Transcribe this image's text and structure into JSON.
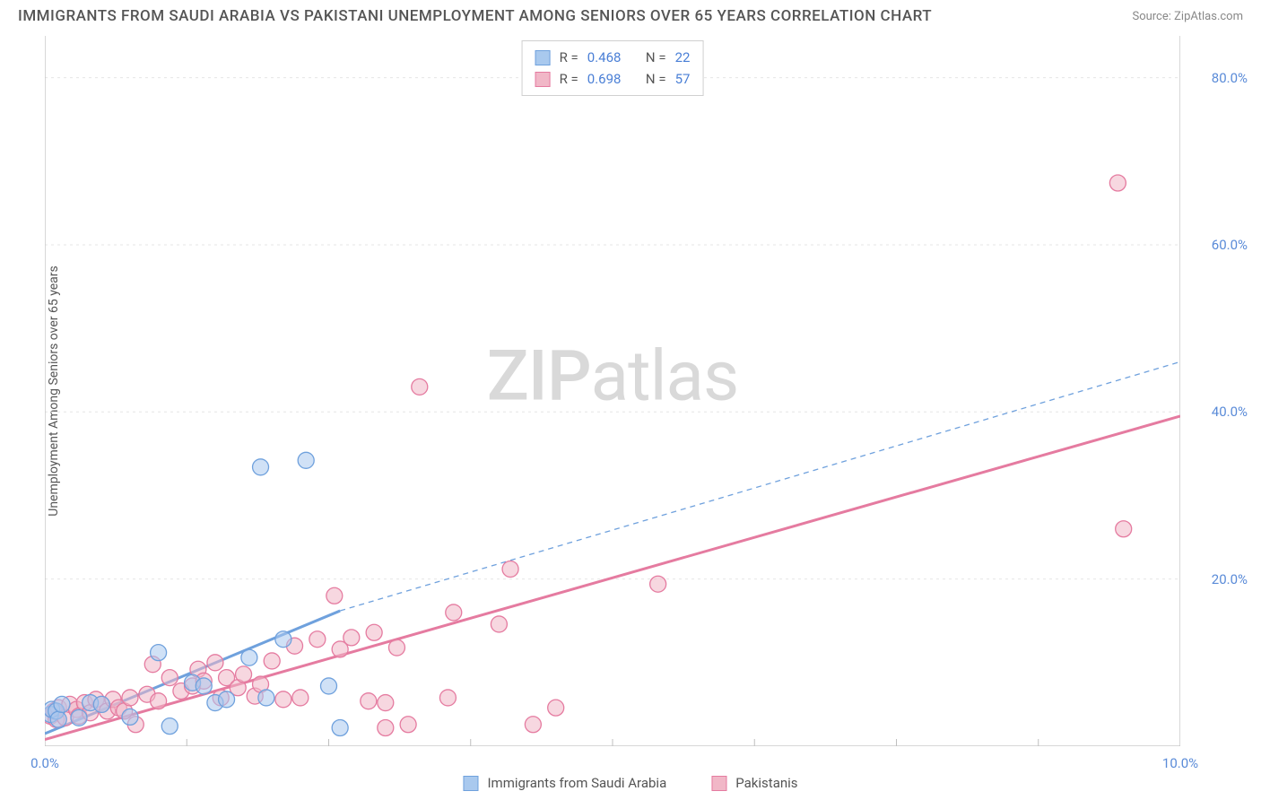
{
  "title": "IMMIGRANTS FROM SAUDI ARABIA VS PAKISTANI UNEMPLOYMENT AMONG SENIORS OVER 65 YEARS CORRELATION CHART",
  "source": "Source: ZipAtlas.com",
  "y_axis_label": "Unemployment Among Seniors over 65 years",
  "watermark_zip": "ZIP",
  "watermark_atlas": "atlas",
  "chart": {
    "type": "scatter",
    "background_color": "#ffffff",
    "grid_color": "#e6e6e6",
    "axis_color": "#bfbfbf",
    "tick_color": "#5a8bd8",
    "xlim": [
      0,
      10
    ],
    "ylim": [
      0,
      85
    ],
    "x_ticks": [
      0.0,
      10.0
    ],
    "x_tick_labels": [
      "0.0%",
      "10.0%"
    ],
    "y_ticks": [
      20.0,
      40.0,
      60.0,
      80.0
    ],
    "y_tick_labels": [
      "20.0%",
      "40.0%",
      "60.0%",
      "80.0%"
    ],
    "x_grid_at": [
      1.25,
      2.5,
      3.75,
      5.0,
      6.25,
      7.5,
      8.75
    ],
    "marker_radius": 9,
    "marker_stroke_width": 1.3,
    "trend_line_width": 3,
    "dash_pattern": "6,5"
  },
  "series": [
    {
      "id": "saudi",
      "label": "Immigrants from Saudi Arabia",
      "fill": "#a9c9ee",
      "stroke": "#6fa1dd",
      "fill_opacity": 0.55,
      "R_label": "R =",
      "R": "0.468",
      "N_label": "N =",
      "N": "22",
      "trend": {
        "x1": 0,
        "y1": 1.5,
        "x2": 2.6,
        "y2": 16.2,
        "x2_dash": 10,
        "y2_dash": 46.0
      },
      "points": [
        [
          0.05,
          3.8
        ],
        [
          0.06,
          4.4
        ],
        [
          0.1,
          4.2
        ],
        [
          0.12,
          3.2
        ],
        [
          0.15,
          5.0
        ],
        [
          0.3,
          3.4
        ],
        [
          0.4,
          5.2
        ],
        [
          0.5,
          5.0
        ],
        [
          0.75,
          3.5
        ],
        [
          1.0,
          11.2
        ],
        [
          1.1,
          2.4
        ],
        [
          1.3,
          7.6
        ],
        [
          1.4,
          7.2
        ],
        [
          1.5,
          5.2
        ],
        [
          1.8,
          10.6
        ],
        [
          1.6,
          5.6
        ],
        [
          1.9,
          33.4
        ],
        [
          2.3,
          34.2
        ],
        [
          2.1,
          12.8
        ],
        [
          2.5,
          7.2
        ],
        [
          2.6,
          2.2
        ],
        [
          1.95,
          5.8
        ]
      ]
    },
    {
      "id": "pakistani",
      "label": "Pakistanis",
      "fill": "#f1b7c7",
      "stroke": "#e57ba0",
      "fill_opacity": 0.55,
      "R_label": "R =",
      "R": "0.698",
      "N_label": "N =",
      "N": "57",
      "trend": {
        "x1": 0,
        "y1": 0.8,
        "x2": 10,
        "y2": 39.5
      },
      "points": [
        [
          0.05,
          3.6
        ],
        [
          0.08,
          4.2
        ],
        [
          0.1,
          3.2
        ],
        [
          0.12,
          4.6
        ],
        [
          0.18,
          3.4
        ],
        [
          0.22,
          5.0
        ],
        [
          0.28,
          4.4
        ],
        [
          0.3,
          3.6
        ],
        [
          0.35,
          5.2
        ],
        [
          0.4,
          4.0
        ],
        [
          0.45,
          5.6
        ],
        [
          0.5,
          5.0
        ],
        [
          0.55,
          4.2
        ],
        [
          0.6,
          5.6
        ],
        [
          0.65,
          4.6
        ],
        [
          0.7,
          4.2
        ],
        [
          0.75,
          5.8
        ],
        [
          0.8,
          2.6
        ],
        [
          0.9,
          6.2
        ],
        [
          1.0,
          5.4
        ],
        [
          1.1,
          8.2
        ],
        [
          1.2,
          6.6
        ],
        [
          1.3,
          7.2
        ],
        [
          1.35,
          9.2
        ],
        [
          1.4,
          7.8
        ],
        [
          1.5,
          10.0
        ],
        [
          1.55,
          5.8
        ],
        [
          1.6,
          8.2
        ],
        [
          1.7,
          7.0
        ],
        [
          1.75,
          8.6
        ],
        [
          1.85,
          6.0
        ],
        [
          1.9,
          7.4
        ],
        [
          2.0,
          10.2
        ],
        [
          2.1,
          5.6
        ],
        [
          2.2,
          12.0
        ],
        [
          2.25,
          5.8
        ],
        [
          2.4,
          12.8
        ],
        [
          2.55,
          18.0
        ],
        [
          2.6,
          11.6
        ],
        [
          2.7,
          13.0
        ],
        [
          2.9,
          13.6
        ],
        [
          2.85,
          5.4
        ],
        [
          3.0,
          2.2
        ],
        [
          3.0,
          5.2
        ],
        [
          3.1,
          11.8
        ],
        [
          3.2,
          2.6
        ],
        [
          3.3,
          43.0
        ],
        [
          3.55,
          5.8
        ],
        [
          3.6,
          16.0
        ],
        [
          4.0,
          14.6
        ],
        [
          4.1,
          21.2
        ],
        [
          4.3,
          2.6
        ],
        [
          4.5,
          4.6
        ],
        [
          5.4,
          19.4
        ],
        [
          9.45,
          67.4
        ],
        [
          9.5,
          26.0
        ],
        [
          0.95,
          9.8
        ]
      ]
    }
  ],
  "x_legend": [
    {
      "series": "saudi"
    },
    {
      "series": "pakistani"
    }
  ]
}
